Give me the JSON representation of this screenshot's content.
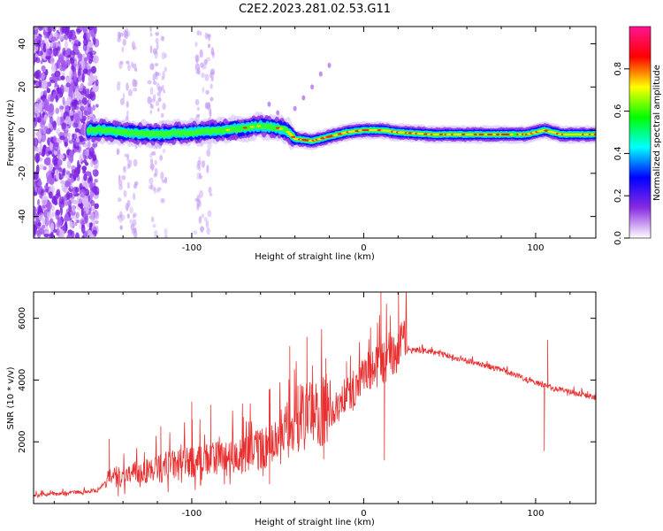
{
  "title": "C2E2.2023.281.02.53.G11",
  "colors": {
    "snr_line": "#e83030",
    "cbar_stops": [
      "#ffffff",
      "#8a2be2",
      "#0000ff",
      "#00ffff",
      "#00ff00",
      "#ffff00",
      "#ff0000",
      "#ff1493"
    ]
  },
  "chart_data": [
    {
      "type": "heatmap",
      "name": "spectrogram",
      "xlabel": "Height of straight line (km)",
      "ylabel": "Frequency (Hz)",
      "xlim": [
        -192,
        135
      ],
      "ylim": [
        -50,
        48
      ],
      "xticks": [
        -100,
        0,
        100
      ],
      "yticks": [
        -40,
        -20,
        0,
        20,
        40
      ],
      "colorbar": {
        "label": "Normalized spectral amplitude",
        "range": [
          0,
          1
        ],
        "ticks": [
          "0.0",
          "0.2",
          "0.4",
          "0.6",
          "0.8"
        ],
        "tick_values": [
          0.0,
          0.2,
          0.4,
          0.6,
          0.8
        ]
      },
      "center_track": {
        "x": [
          -150,
          -140,
          -120,
          -100,
          -80,
          -60,
          -50,
          -45,
          -40,
          -30,
          -20,
          -10,
          0,
          10,
          20,
          40,
          60,
          80,
          95,
          105,
          115,
          135
        ],
        "freq": [
          0,
          -1,
          -2,
          -1,
          0,
          2,
          1,
          0,
          -4,
          -5,
          -3,
          -1,
          0,
          0,
          -1,
          -2,
          -2,
          -2,
          -2,
          0,
          -2,
          -2
        ]
      }
    },
    {
      "type": "line",
      "name": "snr",
      "xlabel": "Height of straight line (km)",
      "ylabel": "SNR (10 * v/v)",
      "xlim": [
        -192,
        135
      ],
      "ylim": [
        0,
        6850
      ],
      "xticks": [
        -100,
        0,
        100
      ],
      "yticks": [
        2000,
        4000,
        6000
      ],
      "envelope": {
        "x": [
          -192,
          -155,
          -150,
          -130,
          -100,
          -80,
          -50,
          -40,
          -20,
          -10,
          0,
          10,
          20,
          30,
          40,
          60,
          80,
          100,
          110,
          120,
          135
        ],
        "y": [
          250,
          400,
          700,
          900,
          1200,
          1300,
          1700,
          2400,
          2700,
          3300,
          3900,
          4300,
          4800,
          4950,
          4900,
          4600,
          4300,
          3900,
          3700,
          3600,
          3400
        ]
      },
      "spikes": [
        {
          "x": -148,
          "y": 2100
        },
        {
          "x": -118,
          "y": 2500
        },
        {
          "x": -100,
          "y": 3300
        },
        {
          "x": -89,
          "y": 3200
        },
        {
          "x": -70,
          "y": 2800
        },
        {
          "x": -55,
          "y": 3700
        },
        {
          "x": -43,
          "y": 5100
        },
        {
          "x": -33,
          "y": 5400
        },
        {
          "x": -22,
          "y": 4700
        },
        {
          "x": -10,
          "y": 4600
        },
        {
          "x": 4,
          "y": 5700
        },
        {
          "x": 10,
          "y": 6850
        },
        {
          "x": 12,
          "y": 1400
        },
        {
          "x": 20,
          "y": 5500
        },
        {
          "x": 105,
          "y": 1700
        },
        {
          "x": 107,
          "y": 5300
        }
      ]
    }
  ]
}
